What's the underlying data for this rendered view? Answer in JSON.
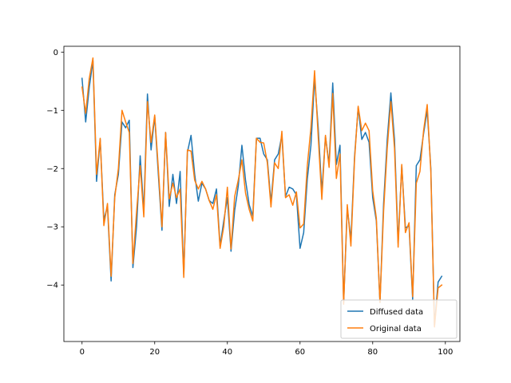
{
  "chart_data": {
    "type": "line",
    "title": "",
    "xlabel": "",
    "ylabel": "",
    "xlim": [
      -5,
      104
    ],
    "ylim": [
      -4.97,
      0.1
    ],
    "xticks": [
      0,
      20,
      40,
      60,
      80,
      100
    ],
    "yticks": [
      0,
      -1,
      -2,
      -3,
      -4
    ],
    "grid": false,
    "legend_position": "lower-right",
    "series": [
      {
        "name": "Diffused data",
        "color": "#1f77b4",
        "x": [
          0,
          1,
          2,
          3,
          4,
          5,
          6,
          7,
          8,
          9,
          10,
          11,
          12,
          13,
          14,
          15,
          16,
          17,
          18,
          19,
          20,
          21,
          22,
          23,
          24,
          25,
          26,
          27,
          28,
          29,
          30,
          31,
          32,
          33,
          34,
          35,
          36,
          37,
          38,
          39,
          40,
          41,
          42,
          43,
          44,
          45,
          46,
          47,
          48,
          49,
          50,
          51,
          52,
          53,
          54,
          55,
          56,
          57,
          58,
          59,
          60,
          61,
          62,
          63,
          64,
          65,
          66,
          67,
          68,
          69,
          70,
          71,
          72,
          73,
          74,
          75,
          76,
          77,
          78,
          79,
          80,
          81,
          82,
          83,
          84,
          85,
          86,
          87,
          88,
          89,
          90,
          91,
          92,
          93,
          94,
          95,
          96,
          97,
          98,
          99
        ],
        "values": [
          -0.45,
          -1.2,
          -0.6,
          -0.15,
          -2.22,
          -1.5,
          -2.88,
          -2.65,
          -3.93,
          -2.45,
          -2.1,
          -1.2,
          -1.3,
          -1.17,
          -3.7,
          -3.0,
          -1.78,
          -2.73,
          -0.72,
          -1.68,
          -1.1,
          -2.1,
          -3.06,
          -1.38,
          -2.65,
          -2.1,
          -2.6,
          -2.05,
          -3.82,
          -1.72,
          -1.43,
          -2.1,
          -2.56,
          -2.25,
          -2.35,
          -2.55,
          -2.6,
          -2.35,
          -3.33,
          -2.9,
          -2.5,
          -3.42,
          -2.72,
          -2.3,
          -1.6,
          -2.2,
          -2.62,
          -2.82,
          -1.48,
          -1.48,
          -1.75,
          -1.85,
          -2.58,
          -1.85,
          -1.75,
          -1.43,
          -2.48,
          -2.32,
          -2.35,
          -2.45,
          -3.37,
          -3.1,
          -2.18,
          -1.6,
          -0.45,
          -1.3,
          -2.4,
          -1.45,
          -1.92,
          -0.53,
          -1.93,
          -1.6,
          -4.3,
          -2.68,
          -3.22,
          -1.8,
          -0.95,
          -1.5,
          -1.38,
          -1.55,
          -2.5,
          -2.9,
          -4.3,
          -2.6,
          -1.5,
          -0.7,
          -1.5,
          -3.28,
          -1.95,
          -3.02,
          -2.98,
          -4.25,
          -1.95,
          -1.85,
          -1.4,
          -1.0,
          -2.0,
          -4.7,
          -3.95,
          -3.85
        ]
      },
      {
        "name": "Original data",
        "color": "#ff7f0e",
        "x": [
          0,
          1,
          2,
          3,
          4,
          5,
          6,
          7,
          8,
          9,
          10,
          11,
          12,
          13,
          14,
          15,
          16,
          17,
          18,
          19,
          20,
          21,
          22,
          23,
          24,
          25,
          26,
          27,
          28,
          29,
          30,
          31,
          32,
          33,
          34,
          35,
          36,
          37,
          38,
          39,
          40,
          41,
          42,
          43,
          44,
          45,
          46,
          47,
          48,
          49,
          50,
          51,
          52,
          53,
          54,
          55,
          56,
          57,
          58,
          59,
          60,
          61,
          62,
          63,
          64,
          65,
          66,
          67,
          68,
          69,
          70,
          71,
          72,
          73,
          74,
          75,
          76,
          77,
          78,
          79,
          80,
          81,
          82,
          83,
          84,
          85,
          86,
          87,
          88,
          89,
          90,
          91,
          92,
          93,
          94,
          95,
          96,
          97,
          98,
          99
        ],
        "values": [
          -0.6,
          -1.05,
          -0.45,
          -0.1,
          -2.1,
          -1.48,
          -2.98,
          -2.6,
          -3.85,
          -2.5,
          -2.0,
          -1.0,
          -1.2,
          -1.38,
          -3.63,
          -2.75,
          -1.95,
          -2.83,
          -0.85,
          -1.55,
          -1.08,
          -2.0,
          -3.0,
          -1.38,
          -2.52,
          -2.25,
          -2.5,
          -2.35,
          -3.87,
          -1.68,
          -1.7,
          -2.2,
          -2.35,
          -2.22,
          -2.35,
          -2.55,
          -2.7,
          -2.45,
          -3.37,
          -3.0,
          -2.32,
          -3.38,
          -2.48,
          -2.2,
          -1.85,
          -2.42,
          -2.7,
          -2.9,
          -1.48,
          -1.55,
          -1.56,
          -1.9,
          -2.66,
          -1.9,
          -2.0,
          -1.36,
          -2.5,
          -2.45,
          -2.63,
          -2.4,
          -3.02,
          -2.95,
          -1.95,
          -1.3,
          -0.32,
          -1.45,
          -2.53,
          -1.43,
          -1.98,
          -0.71,
          -2.17,
          -1.75,
          -4.33,
          -2.62,
          -3.33,
          -1.85,
          -0.93,
          -1.35,
          -1.22,
          -1.35,
          -2.38,
          -2.85,
          -4.3,
          -2.73,
          -1.65,
          -0.85,
          -1.65,
          -3.35,
          -1.93,
          -3.1,
          -2.93,
          -4.2,
          -2.25,
          -2.05,
          -1.35,
          -0.9,
          -2.05,
          -4.72,
          -4.05,
          -4.0
        ]
      }
    ]
  }
}
